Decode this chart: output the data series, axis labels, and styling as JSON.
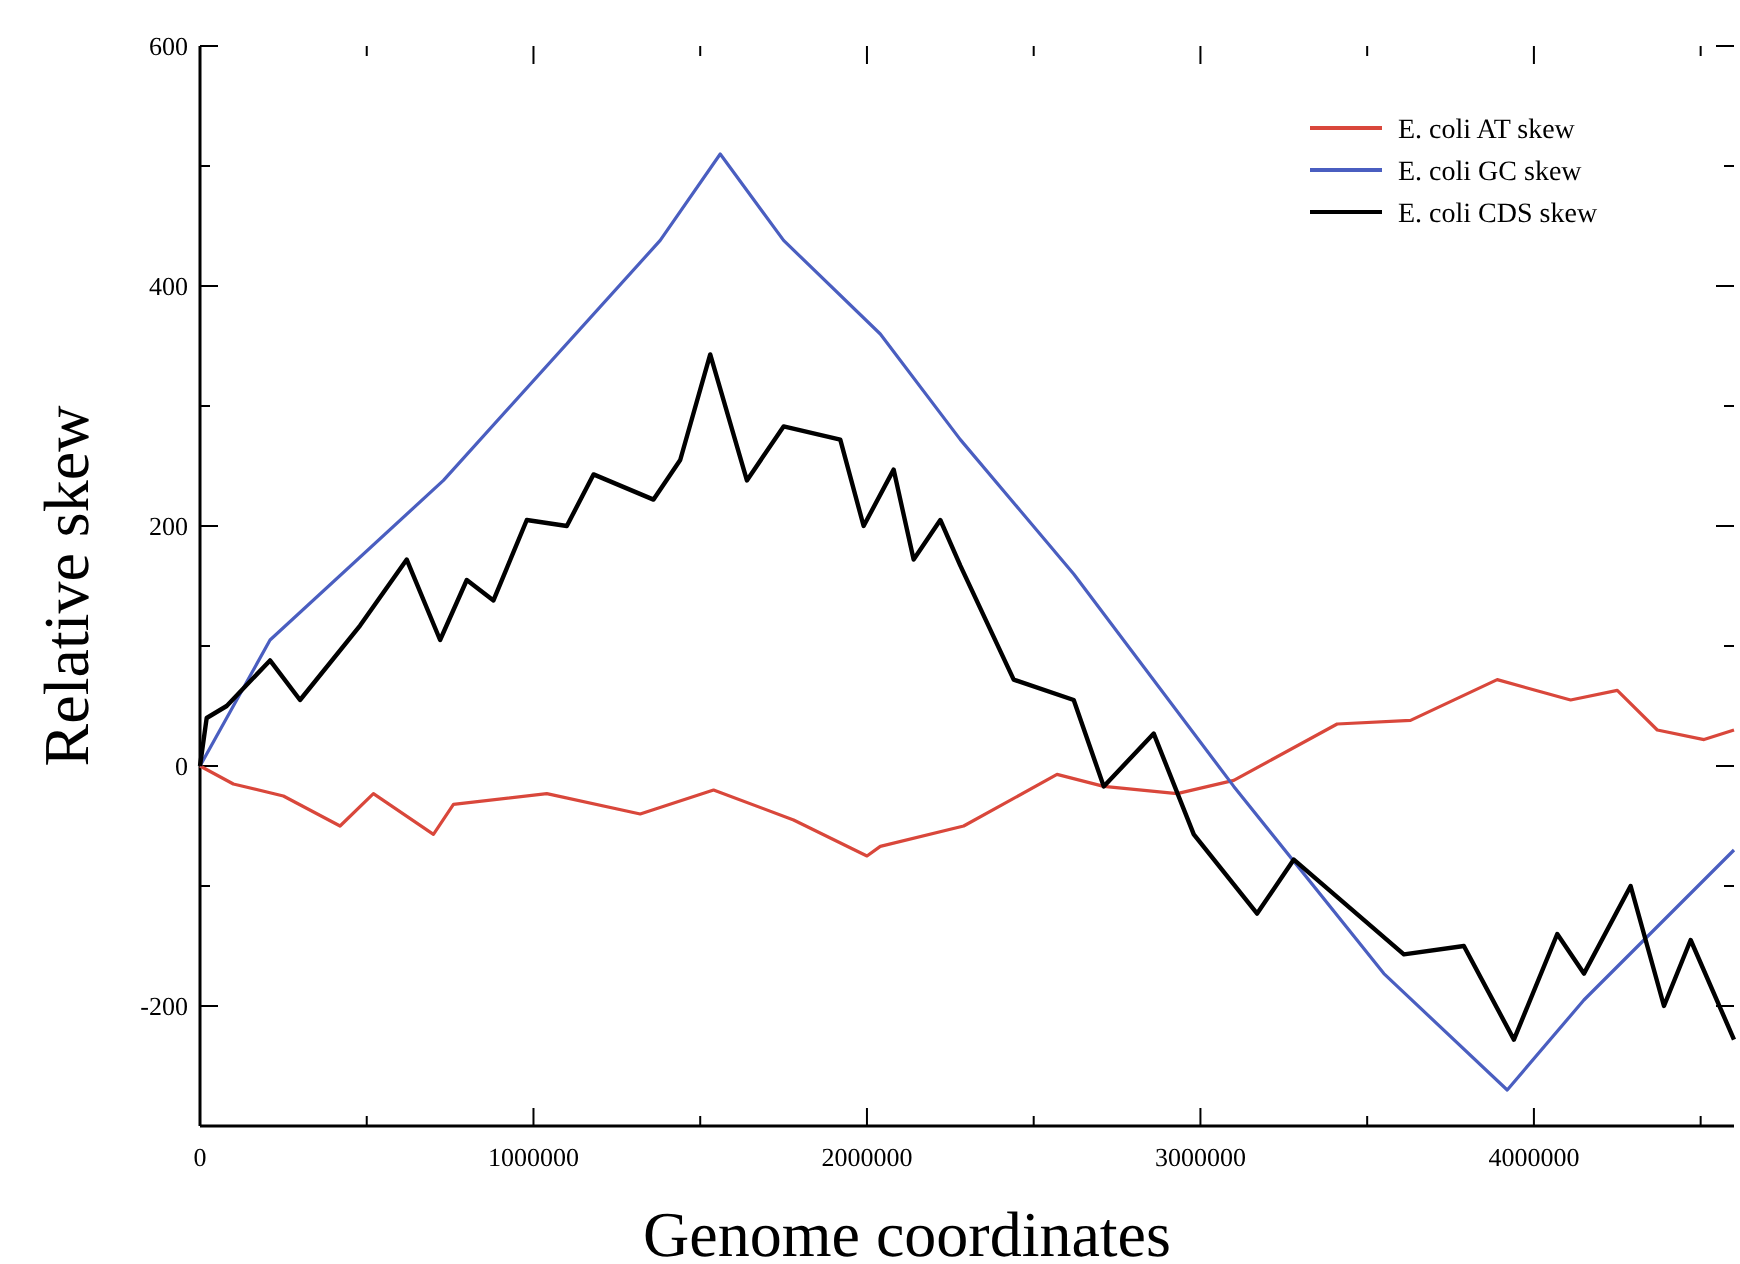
{
  "chart_data": {
    "type": "line",
    "xlabel": "Genome coordinates",
    "ylabel": "Relative skew",
    "xlim": [
      0,
      4600000
    ],
    "ylim": [
      -300,
      600
    ],
    "xticks": [
      0,
      {
        "value": 500000,
        "label": null
      },
      1000000,
      {
        "value": 1500000,
        "label": null
      },
      2000000,
      {
        "value": 2500000,
        "label": null
      },
      3000000,
      {
        "value": 3500000,
        "label": null
      },
      4000000,
      {
        "value": 4500000,
        "label": null
      }
    ],
    "yticks": [
      {
        "value": -300,
        "label": null
      },
      -200,
      {
        "value": -100,
        "label": null
      },
      0,
      {
        "value": 100,
        "label": null
      },
      200,
      {
        "value": 300,
        "label": null
      },
      400,
      {
        "value": 500,
        "label": null
      },
      600
    ],
    "legend": "top right",
    "grid": false,
    "line_style": "solid",
    "marker": "none",
    "series": [
      {
        "name": "E. coli AT skew",
        "color": "#d9473b",
        "x": [
          0,
          100000,
          250000,
          420000,
          520000,
          700000,
          760000,
          1040000,
          1320000,
          1540000,
          1780000,
          2000000,
          2040000,
          2290000,
          2570000,
          2710000,
          2930000,
          3100000,
          3410000,
          3630000,
          3890000,
          4110000,
          4250000,
          4370000,
          4510000,
          4600000
        ],
        "values": [
          0,
          -15,
          -25,
          -50,
          -23,
          -57,
          -32,
          -23,
          -40,
          -20,
          -45,
          -75,
          -67,
          -50,
          -7,
          -17,
          -23,
          -12,
          35,
          38,
          72,
          55,
          63,
          30,
          22,
          30
        ]
      },
      {
        "name": "E. coli GC skew",
        "color": "#4a5ec0",
        "x": [
          0,
          210000,
          730000,
          1380000,
          1560000,
          1750000,
          2040000,
          2280000,
          2620000,
          3100000,
          3550000,
          3920000,
          4150000,
          4600000
        ],
        "values": [
          0,
          105,
          238,
          438,
          510,
          438,
          360,
          272,
          160,
          -17,
          -173,
          -270,
          -195,
          -70
        ]
      },
      {
        "name": "E. coli CDS skew",
        "color": "#000000",
        "x": [
          0,
          20000,
          80000,
          210000,
          300000,
          480000,
          620000,
          720000,
          800000,
          880000,
          980000,
          1100000,
          1180000,
          1360000,
          1440000,
          1530000,
          1640000,
          1750000,
          1920000,
          1990000,
          2080000,
          2140000,
          2220000,
          2280000,
          2440000,
          2620000,
          2710000,
          2860000,
          2980000,
          3170000,
          3280000,
          3610000,
          3790000,
          3940000,
          4070000,
          4150000,
          4290000,
          4390000,
          4470000,
          4600000
        ],
        "values": [
          0,
          40,
          50,
          88,
          55,
          117,
          172,
          105,
          155,
          138,
          205,
          200,
          243,
          222,
          255,
          343,
          238,
          283,
          272,
          200,
          247,
          172,
          205,
          167,
          72,
          55,
          -17,
          27,
          -57,
          -123,
          -78,
          -157,
          -150,
          -228,
          -140,
          -173,
          -100,
          -200,
          -145,
          -228
        ]
      }
    ]
  }
}
